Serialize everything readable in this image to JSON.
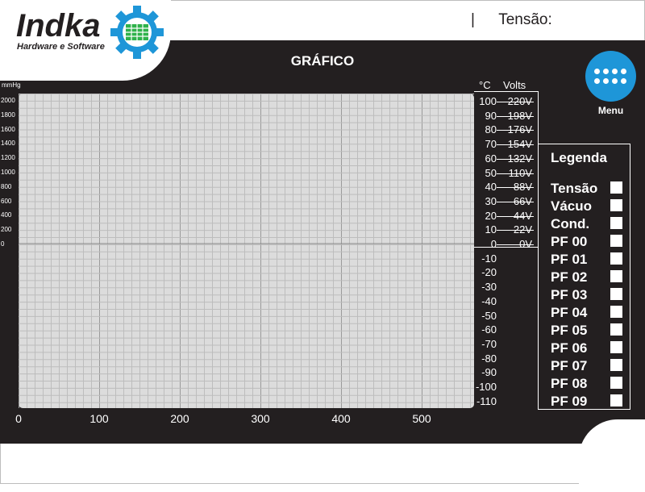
{
  "header": {
    "logo_name": "Indka",
    "logo_tagline": "Hardware e Software",
    "separator": "|",
    "tensao_label": "Tensão:"
  },
  "title": "GRÁFICO",
  "menu": {
    "label": "Menu",
    "icon": "grid-dots-icon",
    "color": "#1e96d8"
  },
  "chart_data": {
    "type": "line",
    "series": [],
    "x": {
      "ticks": [
        "0",
        "100",
        "200",
        "300",
        "400",
        "500"
      ],
      "range": [
        0,
        565
      ]
    },
    "left_axis": {
      "unit": "mmHg",
      "ticks": [
        "2000",
        "1800",
        "1600",
        "1400",
        "1200",
        "1000",
        "800",
        "600",
        "400",
        "200",
        "0"
      ],
      "range": [
        -2200,
        2000
      ]
    },
    "celsius_axis": {
      "unit": "°C",
      "ticks": [
        "100",
        "90",
        "80",
        "70",
        "60",
        "50",
        "40",
        "30",
        "20",
        "10",
        "0",
        "-10",
        "-20",
        "-30",
        "-40",
        "-50",
        "-60",
        "-70",
        "-80",
        "-90",
        "-100",
        "-110"
      ],
      "range": [
        -110,
        100
      ]
    },
    "volts_axis": {
      "unit": "Volts",
      "ticks": [
        "220V",
        "198V",
        "176V",
        "154V",
        "132V",
        "110V",
        "88V",
        "66V",
        "44V",
        "22V",
        "0V"
      ],
      "range": [
        0,
        220
      ]
    },
    "grid": true,
    "background": "#dcdcdc"
  },
  "legend": {
    "title": "Legenda",
    "items": [
      "Tensão",
      "Vácuo",
      "Cond.",
      "PF 00",
      "PF 01",
      "PF 02",
      "PF 03",
      "PF 04",
      "PF 05",
      "PF 06",
      "PF 07",
      "PF 08",
      "PF 09"
    ]
  },
  "colors": {
    "panel": "#231f20",
    "accent": "#1e96d8",
    "gear": "#1e96d8",
    "gear_center": "#2fb24b"
  }
}
